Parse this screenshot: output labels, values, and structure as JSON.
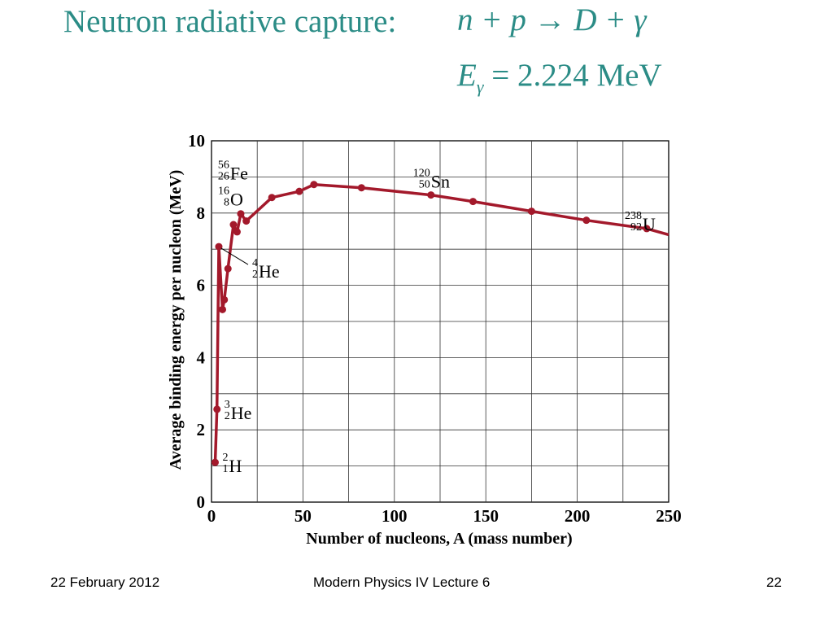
{
  "slide": {
    "title": "Neutron radiative capture:",
    "equation": "n + p → D + γ",
    "energy_symbol": "E",
    "energy_subscript": "γ",
    "energy_rhs": "= 2.224 MeV"
  },
  "footer": {
    "date": "22 February 2012",
    "lecture": "Modern Physics IV Lecture 6",
    "page": "22"
  },
  "colors": {
    "title": "#2b8c86",
    "curve": "#a3192b"
  },
  "chart_data": {
    "type": "line",
    "xlabel": "Number of nucleons, A (mass number)",
    "ylabel": "Average binding energy per nucleon (MeV)",
    "xlim": [
      0,
      250
    ],
    "ylim": [
      0,
      10
    ],
    "xticks": [
      0,
      50,
      100,
      150,
      200,
      250
    ],
    "yticks": [
      0,
      2,
      4,
      6,
      8,
      10
    ],
    "grid": true,
    "points": [
      {
        "x": 2,
        "y": 1.1
      },
      {
        "x": 3,
        "y": 2.57
      },
      {
        "x": 4,
        "y": 7.07
      },
      {
        "x": 6,
        "y": 5.33
      },
      {
        "x": 7,
        "y": 5.6
      },
      {
        "x": 9,
        "y": 6.46
      },
      {
        "x": 12,
        "y": 7.68
      },
      {
        "x": 14,
        "y": 7.48
      },
      {
        "x": 16,
        "y": 7.98
      },
      {
        "x": 19,
        "y": 7.78
      },
      {
        "x": 33,
        "y": 8.43
      },
      {
        "x": 48,
        "y": 8.6
      },
      {
        "x": 56,
        "y": 8.79
      },
      {
        "x": 82,
        "y": 8.7
      },
      {
        "x": 120,
        "y": 8.5
      },
      {
        "x": 143,
        "y": 8.32
      },
      {
        "x": 175,
        "y": 8.05
      },
      {
        "x": 205,
        "y": 7.8
      },
      {
        "x": 238,
        "y": 7.57
      }
    ],
    "annotations": [
      {
        "mass": "2",
        "atomic": "1",
        "symbol": "H",
        "x": 2,
        "y": 1.1
      },
      {
        "mass": "3",
        "atomic": "2",
        "symbol": "He",
        "x": 3,
        "y": 2.57
      },
      {
        "mass": "4",
        "atomic": "2",
        "symbol": "He",
        "x": 4,
        "y": 7.07
      },
      {
        "mass": "16",
        "atomic": "8",
        "symbol": "O",
        "x": 16,
        "y": 7.98
      },
      {
        "mass": "56",
        "atomic": "26",
        "symbol": "Fe",
        "x": 56,
        "y": 8.79
      },
      {
        "mass": "120",
        "atomic": "50",
        "symbol": "Sn",
        "x": 120,
        "y": 8.5
      },
      {
        "mass": "238",
        "atomic": "92",
        "symbol": "U",
        "x": 238,
        "y": 7.57
      }
    ]
  }
}
